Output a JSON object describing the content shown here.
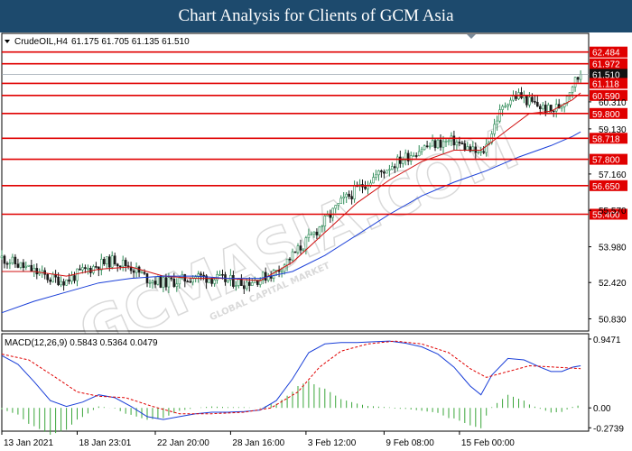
{
  "header": {
    "title": "Chart Analysis for Clients of GCM Asia"
  },
  "chart_data": [
    {
      "type": "candlestick",
      "instrument_label": "CrudeOIL,H4",
      "ohlc_label": "61.175 61.705 61.135 61.510",
      "ylim": [
        50.3,
        63.3
      ],
      "y_ticks": [
        "61.510",
        "60.310",
        "59.130",
        "57.160",
        "55.570",
        "53.980",
        "52.420",
        "50.830"
      ],
      "x_ticks": [
        "13 Jan 2021",
        "18 Jan 23:01",
        "22 Jan 20:00",
        "28 Jan 16:00",
        "3 Feb 12:00",
        "9 Feb 08:00",
        "15 Feb 00:00"
      ],
      "levels": [
        "62.484",
        "61.972",
        "61.510",
        "61.118",
        "60.590",
        "59.800",
        "58.718",
        "57.800",
        "56.650",
        "55.400"
      ],
      "price_path": [
        {
          "x": 0,
          "y": 53.5
        },
        {
          "x": 6,
          "y": 53.2
        },
        {
          "x": 12,
          "y": 52.9
        },
        {
          "x": 18,
          "y": 52.6
        },
        {
          "x": 24,
          "y": 52.5
        },
        {
          "x": 30,
          "y": 52.9
        },
        {
          "x": 36,
          "y": 53.2
        },
        {
          "x": 42,
          "y": 53.4
        },
        {
          "x": 48,
          "y": 53.1
        },
        {
          "x": 54,
          "y": 52.6
        },
        {
          "x": 60,
          "y": 52.4
        },
        {
          "x": 66,
          "y": 52.5
        },
        {
          "x": 72,
          "y": 52.7
        },
        {
          "x": 78,
          "y": 52.6
        },
        {
          "x": 84,
          "y": 52.5
        },
        {
          "x": 90,
          "y": 52.4
        },
        {
          "x": 96,
          "y": 52.6
        },
        {
          "x": 102,
          "y": 52.9
        },
        {
          "x": 108,
          "y": 53.6
        },
        {
          "x": 114,
          "y": 54.3
        },
        {
          "x": 120,
          "y": 55.1
        },
        {
          "x": 126,
          "y": 55.9
        },
        {
          "x": 132,
          "y": 56.5
        },
        {
          "x": 138,
          "y": 57.0
        },
        {
          "x": 144,
          "y": 57.5
        },
        {
          "x": 150,
          "y": 57.9
        },
        {
          "x": 156,
          "y": 58.3
        },
        {
          "x": 162,
          "y": 58.5
        },
        {
          "x": 168,
          "y": 58.6
        },
        {
          "x": 174,
          "y": 58.2
        },
        {
          "x": 178,
          "y": 58.0
        },
        {
          "x": 180,
          "y": 58.4
        },
        {
          "x": 184,
          "y": 59.6
        },
        {
          "x": 188,
          "y": 60.4
        },
        {
          "x": 192,
          "y": 60.6
        },
        {
          "x": 196,
          "y": 60.3
        },
        {
          "x": 200,
          "y": 60.1
        },
        {
          "x": 204,
          "y": 59.9
        },
        {
          "x": 208,
          "y": 60.2
        },
        {
          "x": 212,
          "y": 61.1
        },
        {
          "x": 215,
          "y": 61.5
        }
      ],
      "ma_red": [
        {
          "x": 0,
          "y": 52.9
        },
        {
          "x": 12,
          "y": 52.9
        },
        {
          "x": 24,
          "y": 52.7
        },
        {
          "x": 36,
          "y": 53.0
        },
        {
          "x": 48,
          "y": 53.1
        },
        {
          "x": 60,
          "y": 52.7
        },
        {
          "x": 72,
          "y": 52.6
        },
        {
          "x": 84,
          "y": 52.6
        },
        {
          "x": 96,
          "y": 52.5
        },
        {
          "x": 108,
          "y": 53.3
        },
        {
          "x": 120,
          "y": 54.6
        },
        {
          "x": 132,
          "y": 55.9
        },
        {
          "x": 144,
          "y": 56.9
        },
        {
          "x": 156,
          "y": 57.7
        },
        {
          "x": 168,
          "y": 58.2
        },
        {
          "x": 178,
          "y": 58.2
        },
        {
          "x": 188,
          "y": 59.1
        },
        {
          "x": 196,
          "y": 59.8
        },
        {
          "x": 204,
          "y": 59.9
        },
        {
          "x": 212,
          "y": 60.4
        },
        {
          "x": 215,
          "y": 60.7
        }
      ],
      "ma_blue": [
        {
          "x": 0,
          "y": 51.1
        },
        {
          "x": 12,
          "y": 51.6
        },
        {
          "x": 24,
          "y": 52.0
        },
        {
          "x": 36,
          "y": 52.4
        },
        {
          "x": 48,
          "y": 52.6
        },
        {
          "x": 60,
          "y": 52.7
        },
        {
          "x": 72,
          "y": 52.7
        },
        {
          "x": 84,
          "y": 52.6
        },
        {
          "x": 96,
          "y": 52.6
        },
        {
          "x": 108,
          "y": 52.9
        },
        {
          "x": 120,
          "y": 53.6
        },
        {
          "x": 132,
          "y": 54.5
        },
        {
          "x": 144,
          "y": 55.4
        },
        {
          "x": 156,
          "y": 56.2
        },
        {
          "x": 168,
          "y": 56.8
        },
        {
          "x": 180,
          "y": 57.3
        },
        {
          "x": 192,
          "y": 57.9
        },
        {
          "x": 204,
          "y": 58.4
        },
        {
          "x": 212,
          "y": 58.8
        },
        {
          "x": 215,
          "y": 59.0
        }
      ]
    },
    {
      "type": "macd",
      "label": "MACD(12,26,9) 0.5843 0.5364 0.0479",
      "ylim": [
        -0.32,
        1.02
      ],
      "y_ticks": [
        "0.9471",
        "0.00",
        "-0.2739"
      ],
      "macd_line": [
        {
          "x": 0,
          "y": 0.72
        },
        {
          "x": 6,
          "y": 0.6
        },
        {
          "x": 12,
          "y": 0.36
        },
        {
          "x": 18,
          "y": 0.1
        },
        {
          "x": 24,
          "y": 0.02
        },
        {
          "x": 30,
          "y": 0.08
        },
        {
          "x": 36,
          "y": 0.18
        },
        {
          "x": 42,
          "y": 0.14
        },
        {
          "x": 48,
          "y": 0.02
        },
        {
          "x": 54,
          "y": -0.12
        },
        {
          "x": 60,
          "y": -0.16
        },
        {
          "x": 66,
          "y": -0.12
        },
        {
          "x": 72,
          "y": -0.08
        },
        {
          "x": 78,
          "y": -0.06
        },
        {
          "x": 84,
          "y": -0.06
        },
        {
          "x": 90,
          "y": -0.05
        },
        {
          "x": 96,
          "y": -0.03
        },
        {
          "x": 102,
          "y": 0.1
        },
        {
          "x": 108,
          "y": 0.4
        },
        {
          "x": 114,
          "y": 0.76
        },
        {
          "x": 120,
          "y": 0.88
        },
        {
          "x": 126,
          "y": 0.9
        },
        {
          "x": 132,
          "y": 0.9
        },
        {
          "x": 138,
          "y": 0.91
        },
        {
          "x": 144,
          "y": 0.92
        },
        {
          "x": 150,
          "y": 0.89
        },
        {
          "x": 156,
          "y": 0.84
        },
        {
          "x": 162,
          "y": 0.74
        },
        {
          "x": 168,
          "y": 0.56
        },
        {
          "x": 174,
          "y": 0.3
        },
        {
          "x": 178,
          "y": 0.18
        },
        {
          "x": 182,
          "y": 0.45
        },
        {
          "x": 188,
          "y": 0.68
        },
        {
          "x": 194,
          "y": 0.66
        },
        {
          "x": 200,
          "y": 0.56
        },
        {
          "x": 204,
          "y": 0.5
        },
        {
          "x": 208,
          "y": 0.5
        },
        {
          "x": 212,
          "y": 0.56
        },
        {
          "x": 215,
          "y": 0.58
        }
      ],
      "signal_line": [
        {
          "x": 0,
          "y": 0.74
        },
        {
          "x": 10,
          "y": 0.66
        },
        {
          "x": 20,
          "y": 0.42
        },
        {
          "x": 28,
          "y": 0.22
        },
        {
          "x": 36,
          "y": 0.16
        },
        {
          "x": 46,
          "y": 0.14
        },
        {
          "x": 56,
          "y": 0.02
        },
        {
          "x": 66,
          "y": -0.08
        },
        {
          "x": 78,
          "y": -0.08
        },
        {
          "x": 90,
          "y": -0.06
        },
        {
          "x": 100,
          "y": 0.0
        },
        {
          "x": 110,
          "y": 0.22
        },
        {
          "x": 118,
          "y": 0.56
        },
        {
          "x": 126,
          "y": 0.78
        },
        {
          "x": 136,
          "y": 0.88
        },
        {
          "x": 146,
          "y": 0.92
        },
        {
          "x": 156,
          "y": 0.88
        },
        {
          "x": 166,
          "y": 0.76
        },
        {
          "x": 174,
          "y": 0.54
        },
        {
          "x": 180,
          "y": 0.42
        },
        {
          "x": 188,
          "y": 0.5
        },
        {
          "x": 196,
          "y": 0.58
        },
        {
          "x": 206,
          "y": 0.56
        },
        {
          "x": 215,
          "y": 0.54
        }
      ]
    }
  ],
  "watermark": {
    "line1": "GCMASIA.COM",
    "line2": "GLOBAL CAPITAL MARKET"
  },
  "colors": {
    "banner": "#1d4a6d",
    "bull_candle": "#2e8b57",
    "bear_candle": "#1a1a1a",
    "level_line": "#e00000",
    "ma_red": "#d01010",
    "ma_blue": "#1a3fd8",
    "macd_line": "#1a3fd8",
    "signal_line": "#e00000",
    "histogram": "#3aa63a",
    "price_tag": "#111111"
  }
}
